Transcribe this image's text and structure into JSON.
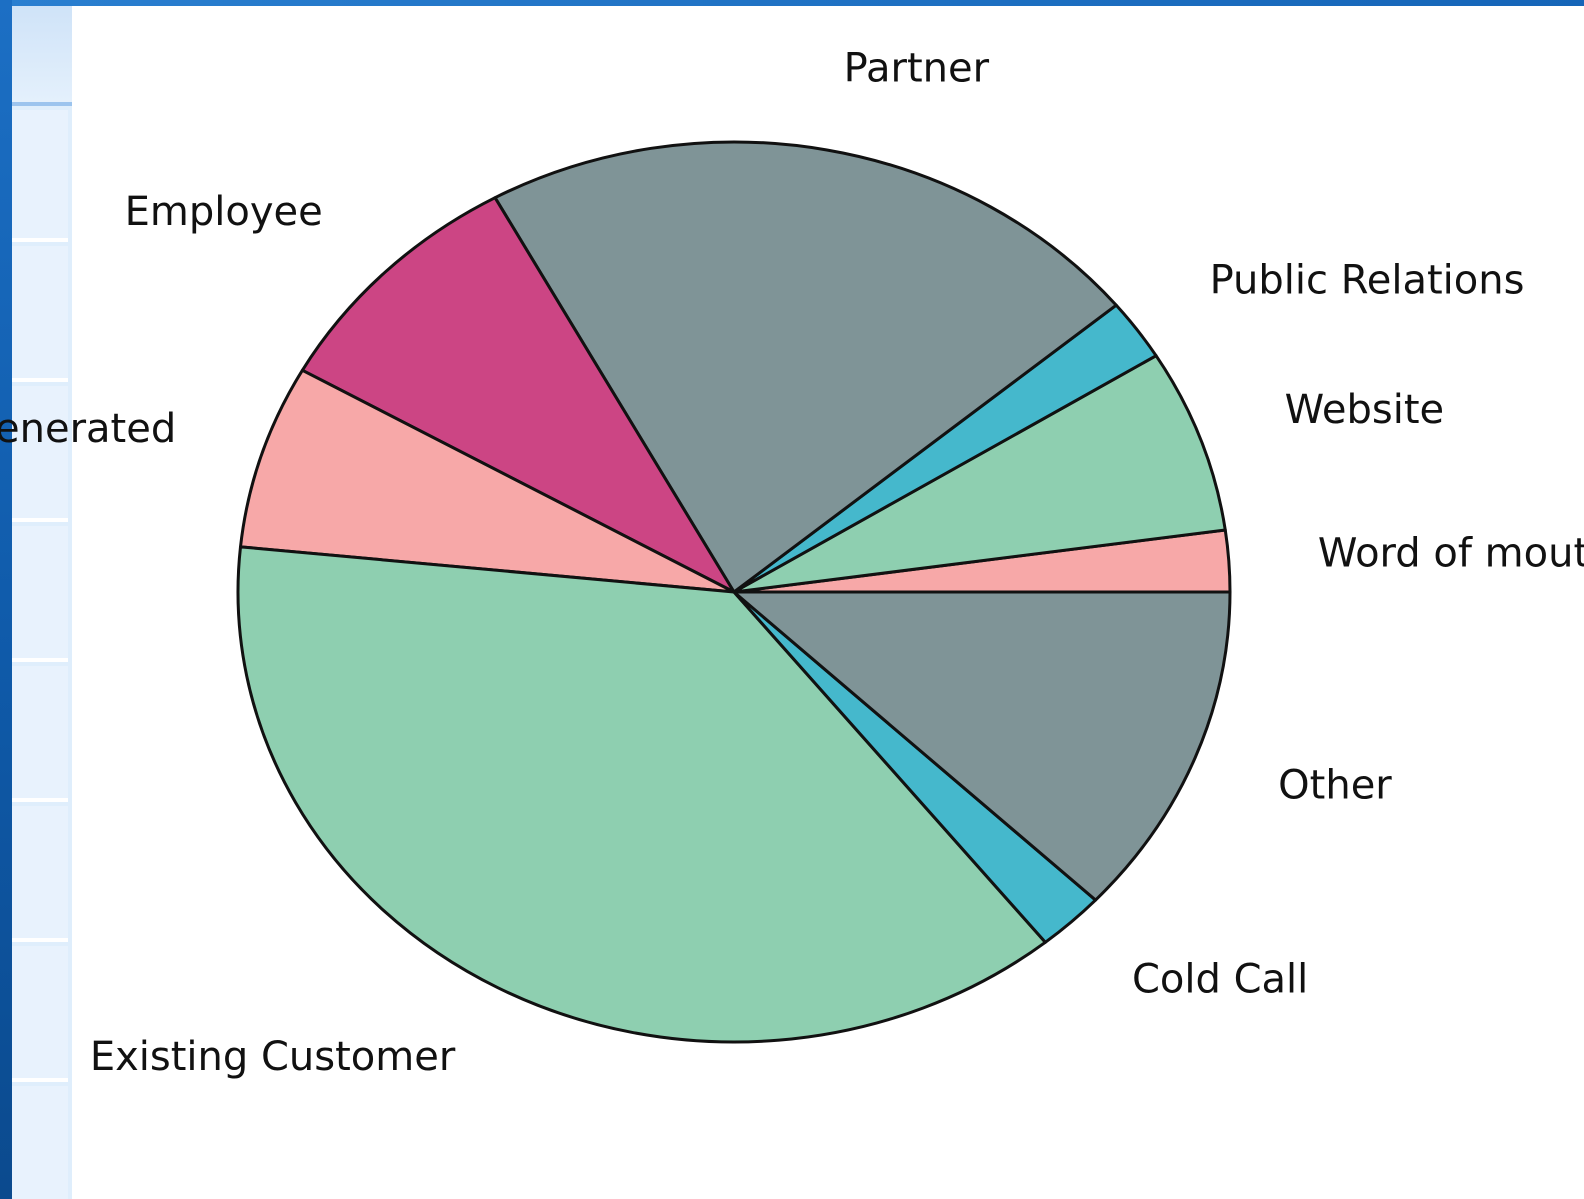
{
  "chart_data": {
    "type": "pie",
    "categories": [
      "Word of mouth",
      "Website",
      "Public Relations",
      "Partner",
      "Employee",
      "Self Generated",
      "Existing Customer",
      "Cold Call",
      "Other"
    ],
    "values": [
      2.2,
      6.6,
      2.2,
      22.0,
      8.8,
      6.6,
      37.4,
      2.2,
      12.0
    ],
    "colors": [
      "#f7a8a8",
      "#8ecfb0",
      "#45b8cc",
      "#7f9497",
      "#cc4584",
      "#f7a8a8",
      "#8ecfb0",
      "#45b8cc",
      "#7f9497"
    ],
    "start_angle_deg": 0,
    "direction": "counterclockwise",
    "edge_color": "#111111",
    "title": "",
    "legend": "none"
  }
}
